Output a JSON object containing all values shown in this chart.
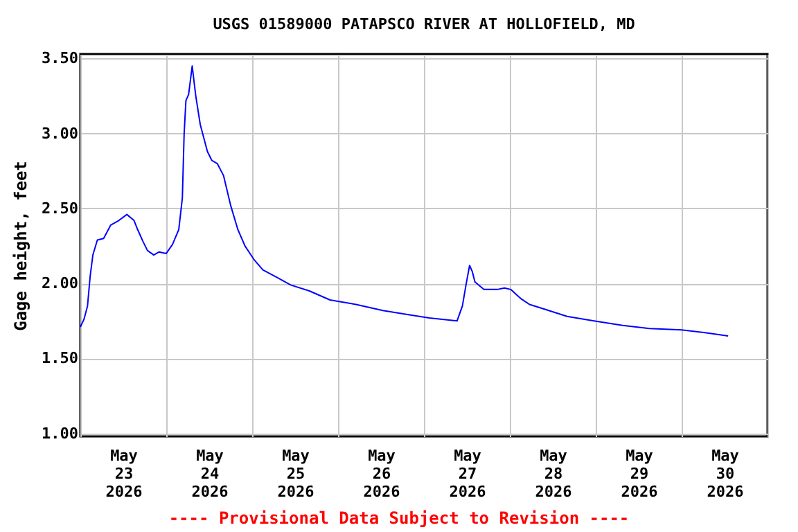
{
  "chart_data": {
    "type": "line",
    "title": "USGS 01589000 PATAPSCO RIVER AT HOLLOFIELD, MD",
    "ylabel": "Gage height, feet",
    "annotations": [
      "---- Provisional Data Subject to Revision ----"
    ],
    "xlim": [
      "2026-05-23T00:00",
      "2026-05-31T00:00"
    ],
    "ylim": [
      0.98,
      3.53
    ],
    "yticks": [
      {
        "value": 1,
        "label": "1.00"
      },
      {
        "value": 1.5,
        "label": "1.50"
      },
      {
        "value": 2,
        "label": "2.00"
      },
      {
        "value": 2.5,
        "label": "2.50"
      },
      {
        "value": 3,
        "label": "3.00"
      },
      {
        "value": 3.5,
        "label": "3.50"
      }
    ],
    "xticks": [
      {
        "value": "2026-05-23T00:00",
        "label": null
      },
      {
        "value": "2026-05-24T00:00",
        "label": null
      },
      {
        "value": "2026-05-25T00:00",
        "label": null
      },
      {
        "value": "2026-05-26T00:00",
        "label": null
      },
      {
        "value": "2026-05-27T00:00",
        "label": null
      },
      {
        "value": "2026-05-28T00:00",
        "label": null
      },
      {
        "value": "2026-05-29T00:00",
        "label": null
      },
      {
        "value": "2026-05-30T00:00",
        "label": null
      },
      {
        "value": "2026-05-31T00:00",
        "label": null
      },
      {
        "value": "2026-05-23T12:00",
        "label": "May\n23\n2026"
      },
      {
        "value": "2026-05-24T12:00",
        "label": "May\n24\n2026"
      },
      {
        "value": "2026-05-25T12:00",
        "label": "May\n25\n2026"
      },
      {
        "value": "2026-05-26T12:00",
        "label": "May\n26\n2026"
      },
      {
        "value": "2026-05-27T12:00",
        "label": "May\n27\n2026"
      },
      {
        "value": "2026-05-28T12:00",
        "label": "May\n28\n2026"
      },
      {
        "value": "2026-05-29T12:00",
        "label": "May\n29\n2026"
      },
      {
        "value": "2026-05-30T12:00",
        "label": "May\n30\n2026"
      }
    ],
    "grid": true,
    "x": [
      "2026-05-23T00:00",
      "2026-05-23T01:00",
      "2026-05-23T02:00",
      "2026-05-23T02:45",
      "2026-05-23T03:30",
      "2026-05-23T04:45",
      "2026-05-23T06:30",
      "2026-05-23T08:30",
      "2026-05-23T10:45",
      "2026-05-23T13:00",
      "2026-05-23T15:00",
      "2026-05-23T16:00",
      "2026-05-23T17:30",
      "2026-05-23T18:45",
      "2026-05-23T20:30",
      "2026-05-23T22:00",
      "2026-05-24T00:00",
      "2026-05-24T01:45",
      "2026-05-24T03:30",
      "2026-05-24T04:30",
      "2026-05-24T05:00",
      "2026-05-24T05:30",
      "2026-05-24T06:15",
      "2026-05-24T07:15",
      "2026-05-24T08:15",
      "2026-05-24T09:30",
      "2026-05-24T11:30",
      "2026-05-24T12:45",
      "2026-05-24T14:15",
      "2026-05-24T16:00",
      "2026-05-24T18:00",
      "2026-05-24T20:00",
      "2026-05-24T22:00",
      "2026-05-25T00:30",
      "2026-05-25T03:00",
      "2026-05-25T07:00",
      "2026-05-25T10:45",
      "2026-05-25T16:00",
      "2026-05-25T21:45",
      "2026-05-26T05:00",
      "2026-05-26T12:30",
      "2026-05-26T20:15",
      "2026-05-27T01:30",
      "2026-05-27T09:15",
      "2026-05-27T10:45",
      "2026-05-27T11:45",
      "2026-05-27T12:45",
      "2026-05-27T13:30",
      "2026-05-27T14:15",
      "2026-05-27T16:45",
      "2026-05-27T20:30",
      "2026-05-27T22:30",
      "2026-05-28T00:15",
      "2026-05-28T03:00",
      "2026-05-28T05:30",
      "2026-05-28T09:30",
      "2026-05-28T16:00",
      "2026-05-28T23:30",
      "2026-05-29T07:30",
      "2026-05-29T15:00",
      "2026-05-30T00:00",
      "2026-05-30T07:15",
      "2026-05-30T13:00"
    ],
    "series": [
      {
        "color": "#0000ff",
        "values": [
          1.71,
          1.76,
          1.85,
          2.05,
          2.19,
          2.29,
          2.3,
          2.39,
          2.42,
          2.46,
          2.42,
          2.36,
          2.28,
          2.22,
          2.19,
          2.21,
          2.2,
          2.26,
          2.36,
          2.57,
          3.0,
          3.22,
          3.26,
          3.45,
          3.25,
          3.06,
          2.88,
          2.82,
          2.8,
          2.72,
          2.52,
          2.36,
          2.25,
          2.16,
          2.09,
          2.04,
          1.99,
          1.95,
          1.89,
          1.86,
          1.82,
          1.79,
          1.77,
          1.75,
          1.85,
          1.99,
          2.12,
          2.08,
          2.01,
          1.96,
          1.96,
          1.97,
          1.96,
          1.9,
          1.86,
          1.83,
          1.78,
          1.75,
          1.72,
          1.7,
          1.69,
          1.67,
          1.65
        ]
      }
    ]
  }
}
